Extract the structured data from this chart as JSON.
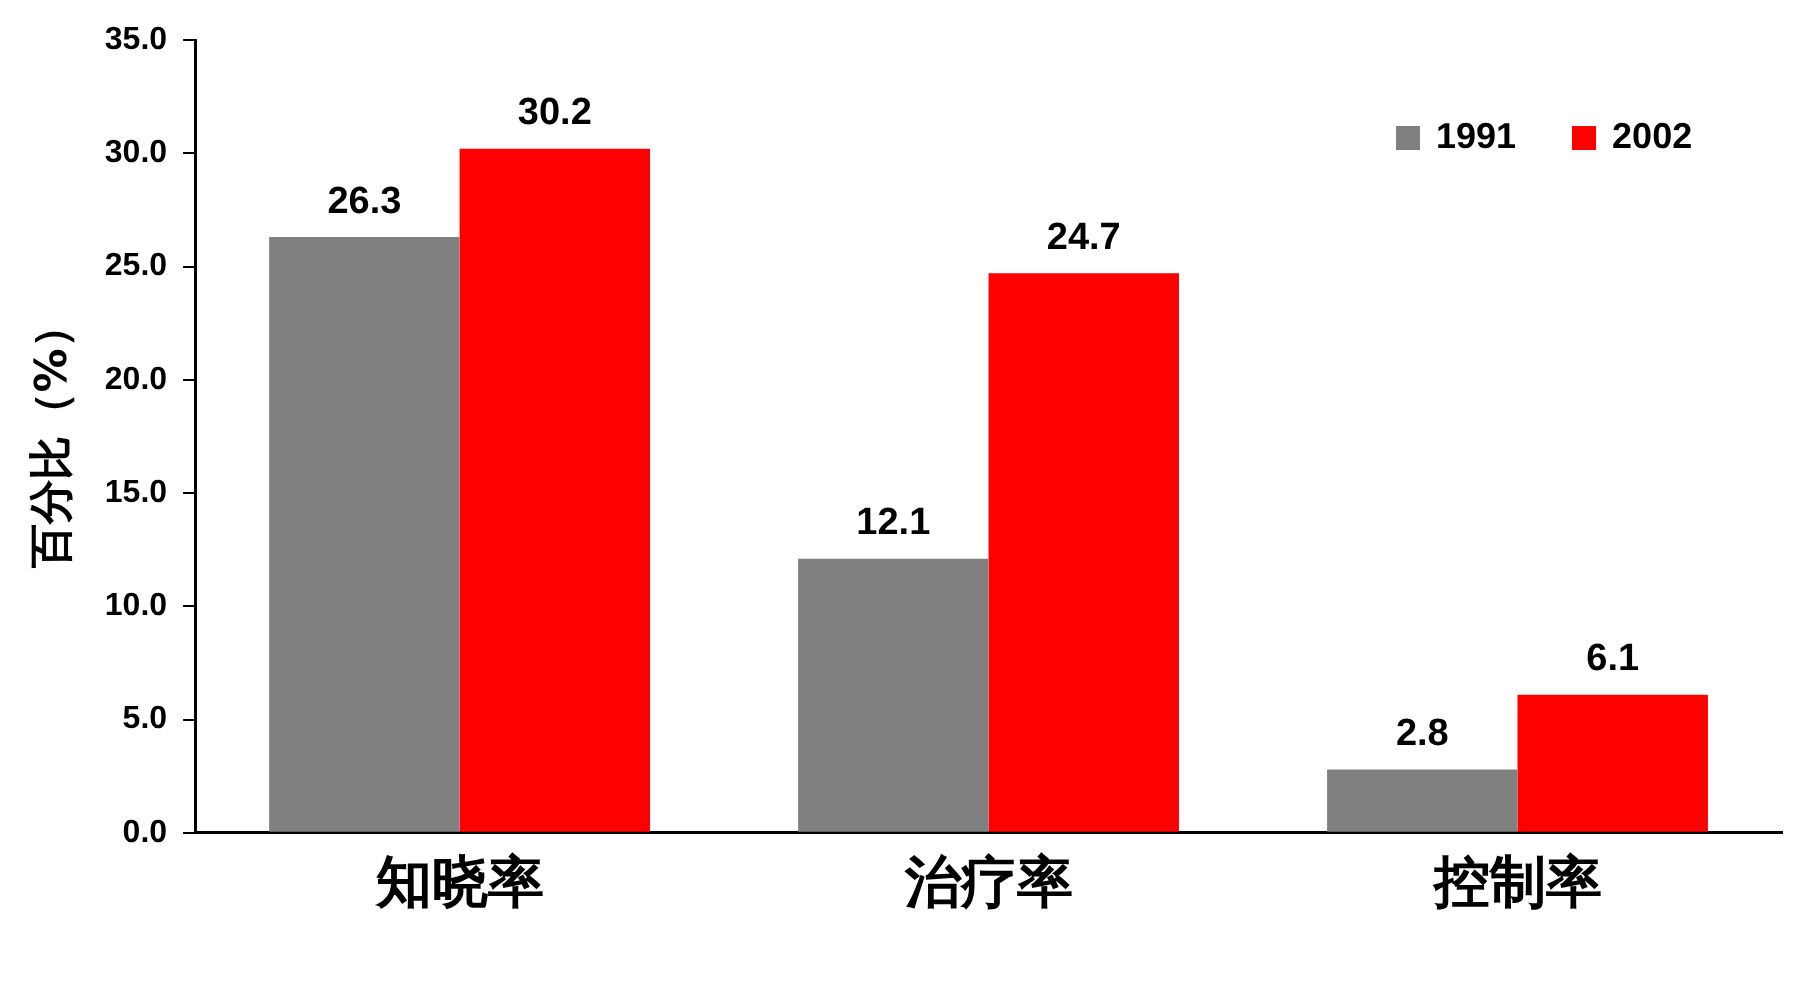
{
  "chart_data": {
    "type": "bar",
    "ylabel": "百分比（%）",
    "categories": [
      "知晓率",
      "治疗率",
      "控制率"
    ],
    "series": [
      {
        "name": "1991",
        "color": "#808080",
        "values": [
          26.3,
          12.1,
          2.8
        ]
      },
      {
        "name": "2002",
        "color": "#ff0000",
        "values": [
          30.2,
          24.7,
          6.1
        ]
      }
    ],
    "ylim": [
      0,
      35
    ],
    "yticks": [
      {
        "value": 0,
        "label": "0.0"
      },
      {
        "value": 5,
        "label": "5.0"
      },
      {
        "value": 10,
        "label": "10.0"
      },
      {
        "value": 15,
        "label": "15.0"
      },
      {
        "value": 20,
        "label": "20.0"
      },
      {
        "value": 25,
        "label": "25.0"
      },
      {
        "value": 30,
        "label": "30.0"
      },
      {
        "value": 35,
        "label": "35.0"
      }
    ],
    "grid": false,
    "legend": "top right",
    "data_labels": true
  }
}
